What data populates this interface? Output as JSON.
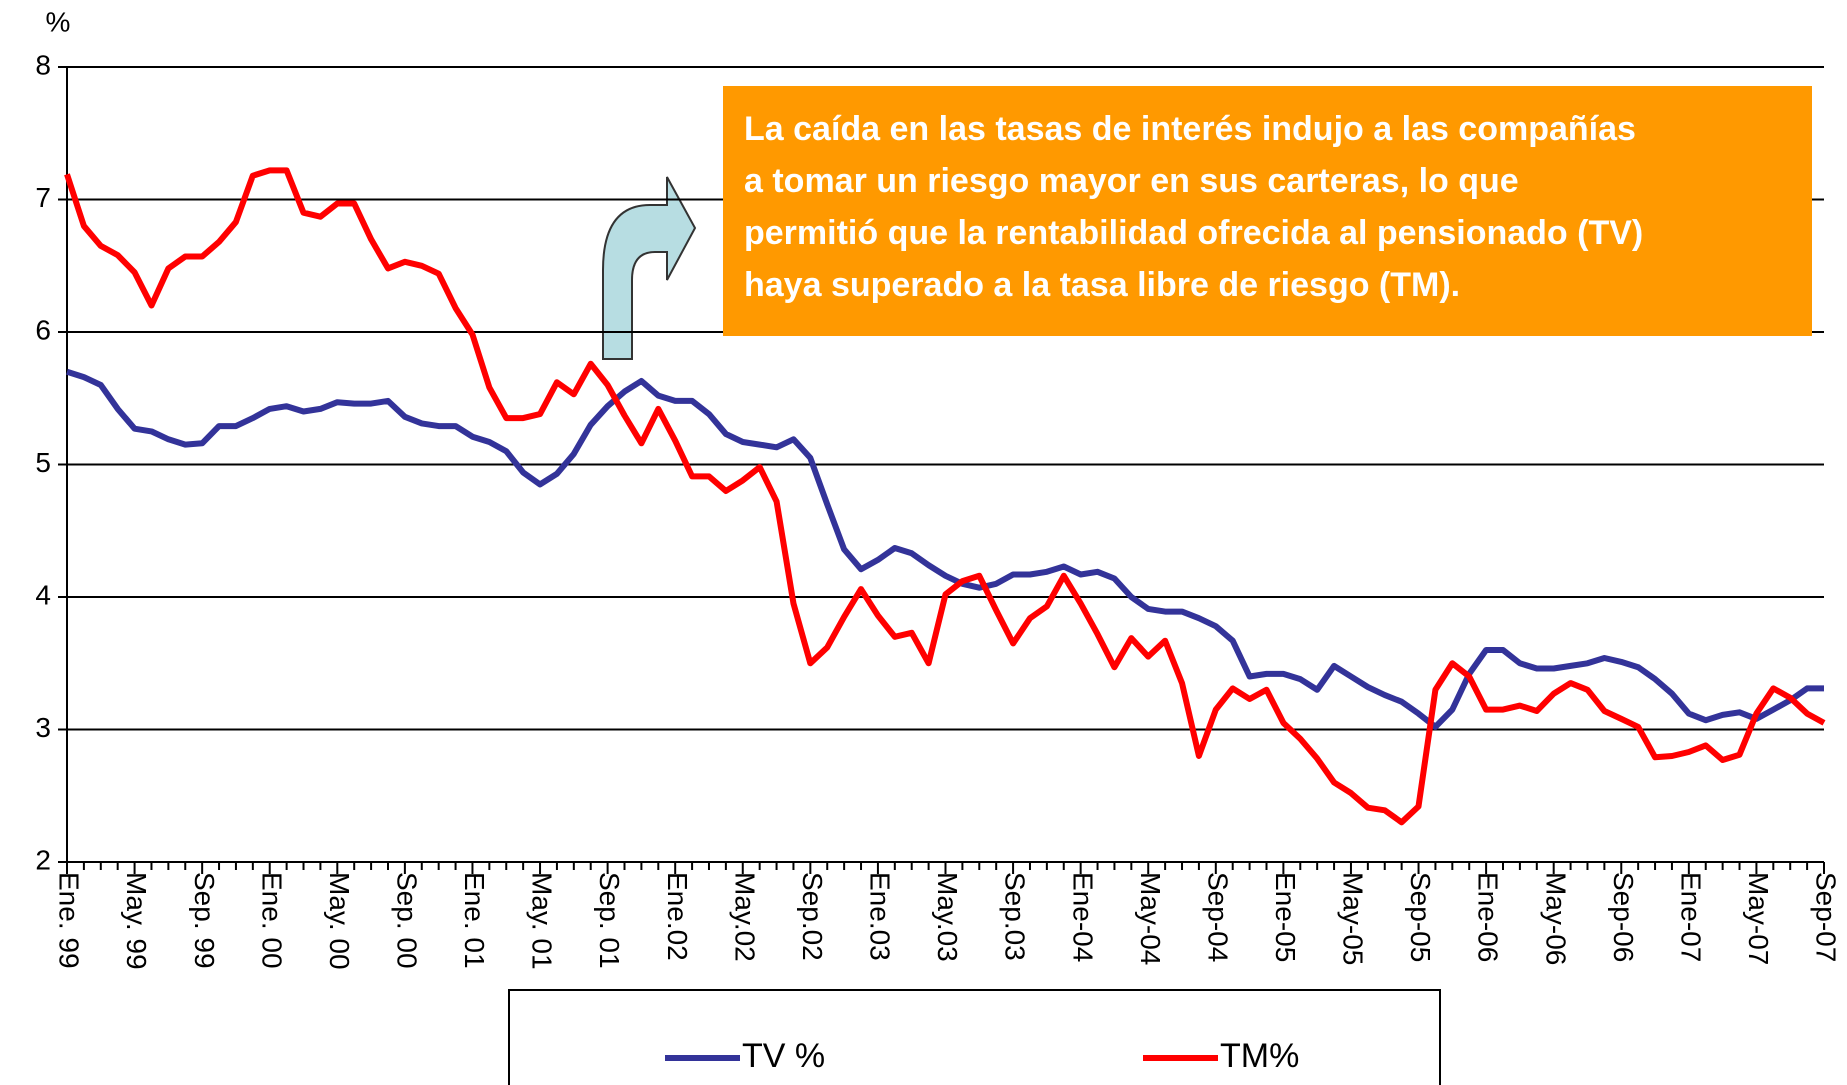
{
  "chart_data": {
    "type": "line",
    "y_axis_label": "%",
    "categories": [
      "Ene. 99",
      null,
      null,
      null,
      "May. 99",
      null,
      null,
      null,
      "Sep. 99",
      null,
      null,
      null,
      "Ene. 00",
      null,
      null,
      null,
      "May. 00",
      null,
      null,
      null,
      "Sep. 00",
      null,
      null,
      null,
      "Ene. 01",
      null,
      null,
      null,
      "May. 01",
      null,
      null,
      null,
      "Sep. 01",
      null,
      null,
      null,
      "Ene.02",
      null,
      null,
      null,
      "May.02",
      null,
      null,
      null,
      "Sep.02",
      null,
      null,
      null,
      "Ene.03",
      null,
      null,
      null,
      "May.03",
      null,
      null,
      null,
      "Sep.03",
      null,
      null,
      null,
      "Ene-04",
      null,
      null,
      null,
      "May-04",
      null,
      null,
      null,
      "Sep-04",
      null,
      null,
      null,
      "Ene-05",
      null,
      null,
      null,
      "May-05",
      null,
      null,
      null,
      "Sep-05",
      null,
      null,
      null,
      "Ene-06",
      null,
      null,
      null,
      "May-06",
      null,
      null,
      null,
      "Sep-06",
      null,
      null,
      null,
      "Ene-07",
      null,
      null,
      null,
      "May-07",
      null,
      null,
      null,
      "Sep-07"
    ],
    "series": [
      {
        "name": "TV %",
        "color": "#333399",
        "values": [
          5.7,
          5.66,
          5.6,
          5.42,
          5.27,
          5.25,
          5.19,
          5.15,
          5.16,
          5.29,
          5.29,
          5.35,
          5.42,
          5.44,
          5.4,
          5.42,
          5.47,
          5.46,
          5.46,
          5.48,
          5.36,
          5.31,
          5.29,
          5.29,
          5.21,
          5.17,
          5.1,
          4.94,
          4.85,
          4.93,
          5.08,
          5.3,
          5.44,
          5.55,
          5.63,
          5.52,
          5.48,
          5.48,
          5.38,
          5.23,
          5.17,
          5.15,
          5.13,
          5.19,
          5.05,
          4.7,
          4.36,
          4.21,
          4.28,
          4.37,
          4.33,
          4.24,
          4.16,
          4.1,
          4.07,
          4.1,
          4.17,
          4.17,
          4.19,
          4.23,
          4.17,
          4.19,
          4.14,
          4.0,
          3.91,
          3.89,
          3.89,
          3.84,
          3.78,
          3.67,
          3.4,
          3.42,
          3.42,
          3.38,
          3.3,
          3.48,
          3.4,
          3.32,
          3.26,
          3.21,
          3.12,
          3.02,
          3.15,
          3.42,
          3.6,
          3.6,
          3.5,
          3.46,
          3.46,
          3.48,
          3.5,
          3.54,
          3.51,
          3.47,
          3.38,
          3.27,
          3.12,
          3.07,
          3.11,
          3.13,
          3.08,
          3.15,
          3.22,
          3.31,
          3.31
        ]
      },
      {
        "name": "TM%",
        "color": "#ff0000",
        "values": [
          7.19,
          6.8,
          6.65,
          6.58,
          6.45,
          6.2,
          6.48,
          6.57,
          6.57,
          6.68,
          6.83,
          7.18,
          7.22,
          7.22,
          6.9,
          6.87,
          6.97,
          6.97,
          6.7,
          6.48,
          6.53,
          6.5,
          6.44,
          6.18,
          5.98,
          5.58,
          5.35,
          5.35,
          5.38,
          5.62,
          5.53,
          5.76,
          5.6,
          5.37,
          5.16,
          5.42,
          5.18,
          4.91,
          4.91,
          4.8,
          4.88,
          4.98,
          4.72,
          3.95,
          3.5,
          3.62,
          3.85,
          4.06,
          3.86,
          3.7,
          3.73,
          3.5,
          4.02,
          4.12,
          4.16,
          3.9,
          3.65,
          3.84,
          3.93,
          4.16,
          3.95,
          3.72,
          3.47,
          3.69,
          3.55,
          3.67,
          3.35,
          2.8,
          3.15,
          3.31,
          3.23,
          3.3,
          3.05,
          2.93,
          2.78,
          2.6,
          2.52,
          2.41,
          2.39,
          2.3,
          2.42,
          3.3,
          3.5,
          3.4,
          3.15,
          3.15,
          3.18,
          3.14,
          3.27,
          3.35,
          3.3,
          3.14,
          3.08,
          3.02,
          2.79,
          2.8,
          2.83,
          2.88,
          2.77,
          2.81,
          3.12,
          3.31,
          3.24,
          3.12,
          3.05
        ]
      }
    ],
    "ylim": [
      2,
      8
    ],
    "yticks": [
      2,
      3,
      4,
      5,
      6,
      7,
      8
    ],
    "grid": true,
    "annotation": [
      "La caída en las tasas de interés indujo a las compañías",
      "a tomar un riesgo mayor en sus carteras, lo que",
      "permitió que la rentabilidad ofrecida al pensionado (TV)",
      "haya superado a la tasa libre de riesgo (TM)."
    ],
    "annotation_color": "#ff9900"
  }
}
